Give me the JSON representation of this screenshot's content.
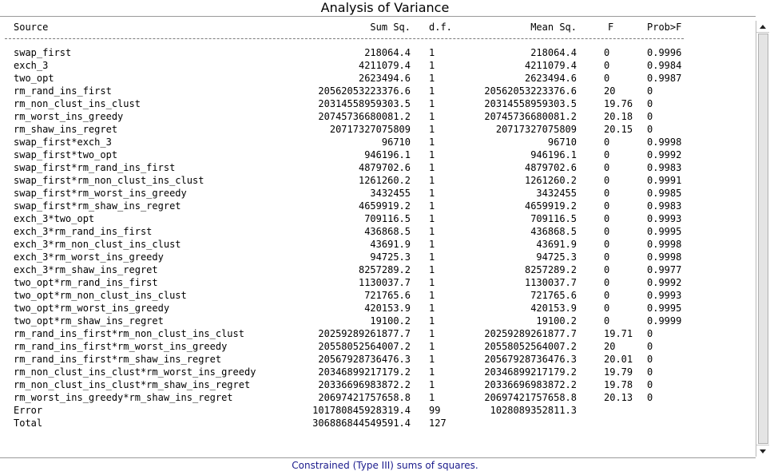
{
  "title": "Analysis of Variance",
  "columns": {
    "source": "Source",
    "sum_sq": "Sum Sq.",
    "df": "d.f.",
    "mean_sq": "Mean Sq.",
    "f": "F",
    "prob": "Prob>F"
  },
  "rows": [
    {
      "source": "swap_first",
      "sum_sq": "218064.4",
      "df": "1",
      "mean_sq": "218064.4",
      "f": "0",
      "prob": "0.9996"
    },
    {
      "source": "exch_3",
      "sum_sq": "4211079.4",
      "df": "1",
      "mean_sq": "4211079.4",
      "f": "0",
      "prob": "0.9984"
    },
    {
      "source": "two_opt",
      "sum_sq": "2623494.6",
      "df": "1",
      "mean_sq": "2623494.6",
      "f": "0",
      "prob": "0.9987"
    },
    {
      "source": "rm_rand_ins_first",
      "sum_sq": "20562053223376.6",
      "df": "1",
      "mean_sq": "20562053223376.6",
      "f": "20",
      "prob": "0"
    },
    {
      "source": "rm_non_clust_ins_clust",
      "sum_sq": "20314558959303.5",
      "df": "1",
      "mean_sq": "20314558959303.5",
      "f": "19.76",
      "prob": "0"
    },
    {
      "source": "rm_worst_ins_greedy",
      "sum_sq": "20745736680081.2",
      "df": "1",
      "mean_sq": "20745736680081.2",
      "f": "20.18",
      "prob": "0"
    },
    {
      "source": "rm_shaw_ins_regret",
      "sum_sq": "20717327075809",
      "df": "1",
      "mean_sq": "20717327075809",
      "f": "20.15",
      "prob": "0"
    },
    {
      "source": "swap_first*exch_3",
      "sum_sq": "96710",
      "df": "1",
      "mean_sq": "96710",
      "f": "0",
      "prob": "0.9998"
    },
    {
      "source": "swap_first*two_opt",
      "sum_sq": "946196.1",
      "df": "1",
      "mean_sq": "946196.1",
      "f": "0",
      "prob": "0.9992"
    },
    {
      "source": "swap_first*rm_rand_ins_first",
      "sum_sq": "4879702.6",
      "df": "1",
      "mean_sq": "4879702.6",
      "f": "0",
      "prob": "0.9983"
    },
    {
      "source": "swap_first*rm_non_clust_ins_clust",
      "sum_sq": "1261260.2",
      "df": "1",
      "mean_sq": "1261260.2",
      "f": "0",
      "prob": "0.9991"
    },
    {
      "source": "swap_first*rm_worst_ins_greedy",
      "sum_sq": "3432455",
      "df": "1",
      "mean_sq": "3432455",
      "f": "0",
      "prob": "0.9985"
    },
    {
      "source": "swap_first*rm_shaw_ins_regret",
      "sum_sq": "4659919.2",
      "df": "1",
      "mean_sq": "4659919.2",
      "f": "0",
      "prob": "0.9983"
    },
    {
      "source": "exch_3*two_opt",
      "sum_sq": "709116.5",
      "df": "1",
      "mean_sq": "709116.5",
      "f": "0",
      "prob": "0.9993"
    },
    {
      "source": "exch_3*rm_rand_ins_first",
      "sum_sq": "436868.5",
      "df": "1",
      "mean_sq": "436868.5",
      "f": "0",
      "prob": "0.9995"
    },
    {
      "source": "exch_3*rm_non_clust_ins_clust",
      "sum_sq": "43691.9",
      "df": "1",
      "mean_sq": "43691.9",
      "f": "0",
      "prob": "0.9998"
    },
    {
      "source": "exch_3*rm_worst_ins_greedy",
      "sum_sq": "94725.3",
      "df": "1",
      "mean_sq": "94725.3",
      "f": "0",
      "prob": "0.9998"
    },
    {
      "source": "exch_3*rm_shaw_ins_regret",
      "sum_sq": "8257289.2",
      "df": "1",
      "mean_sq": "8257289.2",
      "f": "0",
      "prob": "0.9977"
    },
    {
      "source": "two_opt*rm_rand_ins_first",
      "sum_sq": "1130037.7",
      "df": "1",
      "mean_sq": "1130037.7",
      "f": "0",
      "prob": "0.9992"
    },
    {
      "source": "two_opt*rm_non_clust_ins_clust",
      "sum_sq": "721765.6",
      "df": "1",
      "mean_sq": "721765.6",
      "f": "0",
      "prob": "0.9993"
    },
    {
      "source": "two_opt*rm_worst_ins_greedy",
      "sum_sq": "420153.9",
      "df": "1",
      "mean_sq": "420153.9",
      "f": "0",
      "prob": "0.9995"
    },
    {
      "source": "two_opt*rm_shaw_ins_regret",
      "sum_sq": "19100.2",
      "df": "1",
      "mean_sq": "19100.2",
      "f": "0",
      "prob": "0.9999"
    },
    {
      "source": "rm_rand_ins_first*rm_non_clust_ins_clust",
      "sum_sq": "20259289261877.7",
      "df": "1",
      "mean_sq": "20259289261877.7",
      "f": "19.71",
      "prob": "0"
    },
    {
      "source": "rm_rand_ins_first*rm_worst_ins_greedy",
      "sum_sq": "20558052564007.2",
      "df": "1",
      "mean_sq": "20558052564007.2",
      "f": "20",
      "prob": "0"
    },
    {
      "source": "rm_rand_ins_first*rm_shaw_ins_regret",
      "sum_sq": "20567928736476.3",
      "df": "1",
      "mean_sq": "20567928736476.3",
      "f": "20.01",
      "prob": "0"
    },
    {
      "source": "rm_non_clust_ins_clust*rm_worst_ins_greedy",
      "sum_sq": "20346899217179.2",
      "df": "1",
      "mean_sq": "20346899217179.2",
      "f": "19.79",
      "prob": "0"
    },
    {
      "source": "rm_non_clust_ins_clust*rm_shaw_ins_regret",
      "sum_sq": "20336696983872.2",
      "df": "1",
      "mean_sq": "20336696983872.2",
      "f": "19.78",
      "prob": "0"
    },
    {
      "source": "rm_worst_ins_greedy*rm_shaw_ins_regret",
      "sum_sq": "20697421757658.8",
      "df": "1",
      "mean_sq": "20697421757658.8",
      "f": "20.13",
      "prob": "0"
    },
    {
      "source": "Error",
      "sum_sq": "101780845928319.4",
      "df": "99",
      "mean_sq": "1028089352811.3",
      "f": "",
      "prob": ""
    },
    {
      "source": "Total",
      "sum_sq": "306886844549591.4",
      "df": "127",
      "mean_sq": "",
      "f": "",
      "prob": ""
    }
  ],
  "footer": "Constrained (Type III) sums of squares.",
  "colors": {
    "footer_text": "#1a1a8c",
    "background": "#ffffff",
    "text": "#000000"
  },
  "icons": {
    "scroll_up": "triangle-up-icon",
    "scroll_down": "triangle-down-icon"
  }
}
